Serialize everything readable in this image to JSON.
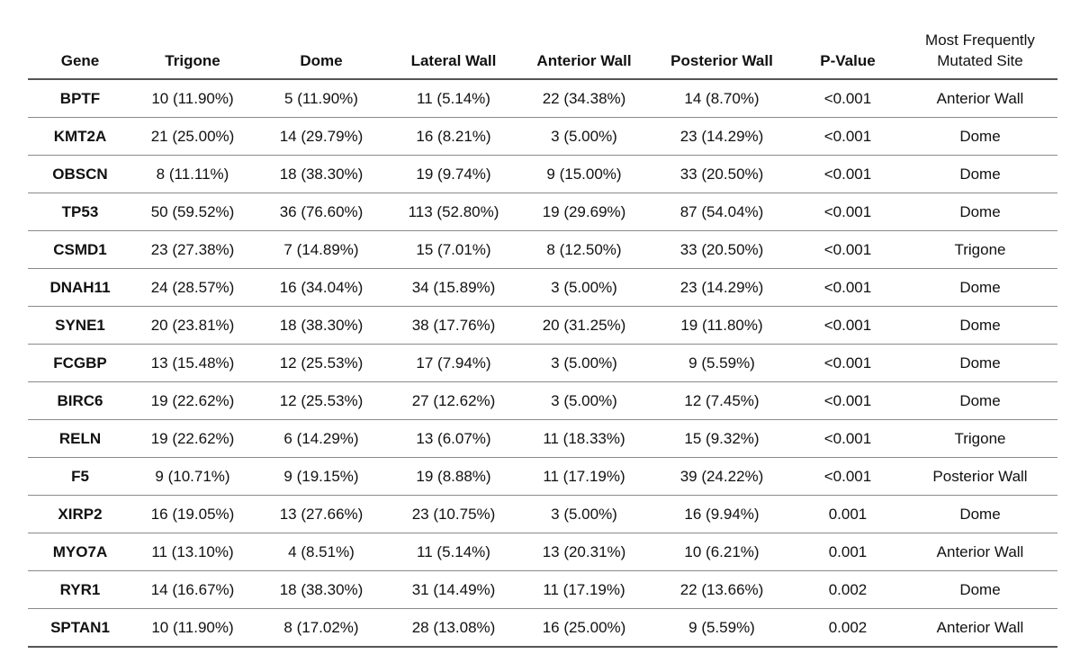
{
  "table": {
    "columns": [
      "Gene",
      "Trigone",
      "Dome",
      "Lateral Wall",
      "Anterior Wall",
      "Posterior Wall",
      "P-Value"
    ],
    "last_column": {
      "line1": "Most Frequently",
      "line2": "Mutated Site"
    },
    "rows": [
      {
        "gene": "BPTF",
        "trigone": "10 (11.90%)",
        "dome": "5 (11.90%)",
        "lateral": "11 (5.14%)",
        "anterior": "22 (34.38%)",
        "posterior": "14 (8.70%)",
        "p": "<0.001",
        "site": "Anterior Wall"
      },
      {
        "gene": "KMT2A",
        "trigone": "21 (25.00%)",
        "dome": "14 (29.79%)",
        "lateral": "16 (8.21%)",
        "anterior": "3 (5.00%)",
        "posterior": "23 (14.29%)",
        "p": "<0.001",
        "site": "Dome"
      },
      {
        "gene": "OBSCN",
        "trigone": "8 (11.11%)",
        "dome": "18 (38.30%)",
        "lateral": "19 (9.74%)",
        "anterior": "9 (15.00%)",
        "posterior": "33 (20.50%)",
        "p": "<0.001",
        "site": "Dome"
      },
      {
        "gene": "TP53",
        "trigone": "50 (59.52%)",
        "dome": "36 (76.60%)",
        "lateral": "113 (52.80%)",
        "anterior": "19 (29.69%)",
        "posterior": "87 (54.04%)",
        "p": "<0.001",
        "site": "Dome"
      },
      {
        "gene": "CSMD1",
        "trigone": "23 (27.38%)",
        "dome": "7 (14.89%)",
        "lateral": "15 (7.01%)",
        "anterior": "8 (12.50%)",
        "posterior": "33 (20.50%)",
        "p": "<0.001",
        "site": "Trigone"
      },
      {
        "gene": "DNAH11",
        "trigone": "24 (28.57%)",
        "dome": "16 (34.04%)",
        "lateral": "34 (15.89%)",
        "anterior": "3 (5.00%)",
        "posterior": "23 (14.29%)",
        "p": "<0.001",
        "site": "Dome"
      },
      {
        "gene": "SYNE1",
        "trigone": "20 (23.81%)",
        "dome": "18 (38.30%)",
        "lateral": "38 (17.76%)",
        "anterior": "20 (31.25%)",
        "posterior": "19 (11.80%)",
        "p": "<0.001",
        "site": "Dome"
      },
      {
        "gene": "FCGBP",
        "trigone": "13 (15.48%)",
        "dome": "12 (25.53%)",
        "lateral": "17 (7.94%)",
        "anterior": "3 (5.00%)",
        "posterior": "9 (5.59%)",
        "p": "<0.001",
        "site": "Dome"
      },
      {
        "gene": "BIRC6",
        "trigone": "19 (22.62%)",
        "dome": "12 (25.53%)",
        "lateral": "27 (12.62%)",
        "anterior": "3 (5.00%)",
        "posterior": "12 (7.45%)",
        "p": "<0.001",
        "site": "Dome"
      },
      {
        "gene": "RELN",
        "trigone": "19 (22.62%)",
        "dome": "6 (14.29%)",
        "lateral": "13 (6.07%)",
        "anterior": "11 (18.33%)",
        "posterior": "15 (9.32%)",
        "p": "<0.001",
        "site": "Trigone"
      },
      {
        "gene": "F5",
        "trigone": "9 (10.71%)",
        "dome": "9 (19.15%)",
        "lateral": "19 (8.88%)",
        "anterior": "11 (17.19%)",
        "posterior": "39 (24.22%)",
        "p": "<0.001",
        "site": "Posterior Wall"
      },
      {
        "gene": "XIRP2",
        "trigone": "16 (19.05%)",
        "dome": "13 (27.66%)",
        "lateral": "23 (10.75%)",
        "anterior": "3 (5.00%)",
        "posterior": "16 (9.94%)",
        "p": "0.001",
        "site": "Dome"
      },
      {
        "gene": "MYO7A",
        "trigone": "11 (13.10%)",
        "dome": "4 (8.51%)",
        "lateral": "11 (5.14%)",
        "anterior": "13 (20.31%)",
        "posterior": "10 (6.21%)",
        "p": "0.001",
        "site": "Anterior Wall"
      },
      {
        "gene": "RYR1",
        "trigone": "14 (16.67%)",
        "dome": "18 (38.30%)",
        "lateral": "31 (14.49%)",
        "anterior": "11 (17.19%)",
        "posterior": "22 (13.66%)",
        "p": "0.002",
        "site": "Dome"
      },
      {
        "gene": "SPTAN1",
        "trigone": "10 (11.90%)",
        "dome": "8 (17.02%)",
        "lateral": "28 (13.08%)",
        "anterior": "16 (25.00%)",
        "posterior": "9 (5.59%)",
        "p": "0.002",
        "site": "Anterior Wall"
      }
    ]
  }
}
